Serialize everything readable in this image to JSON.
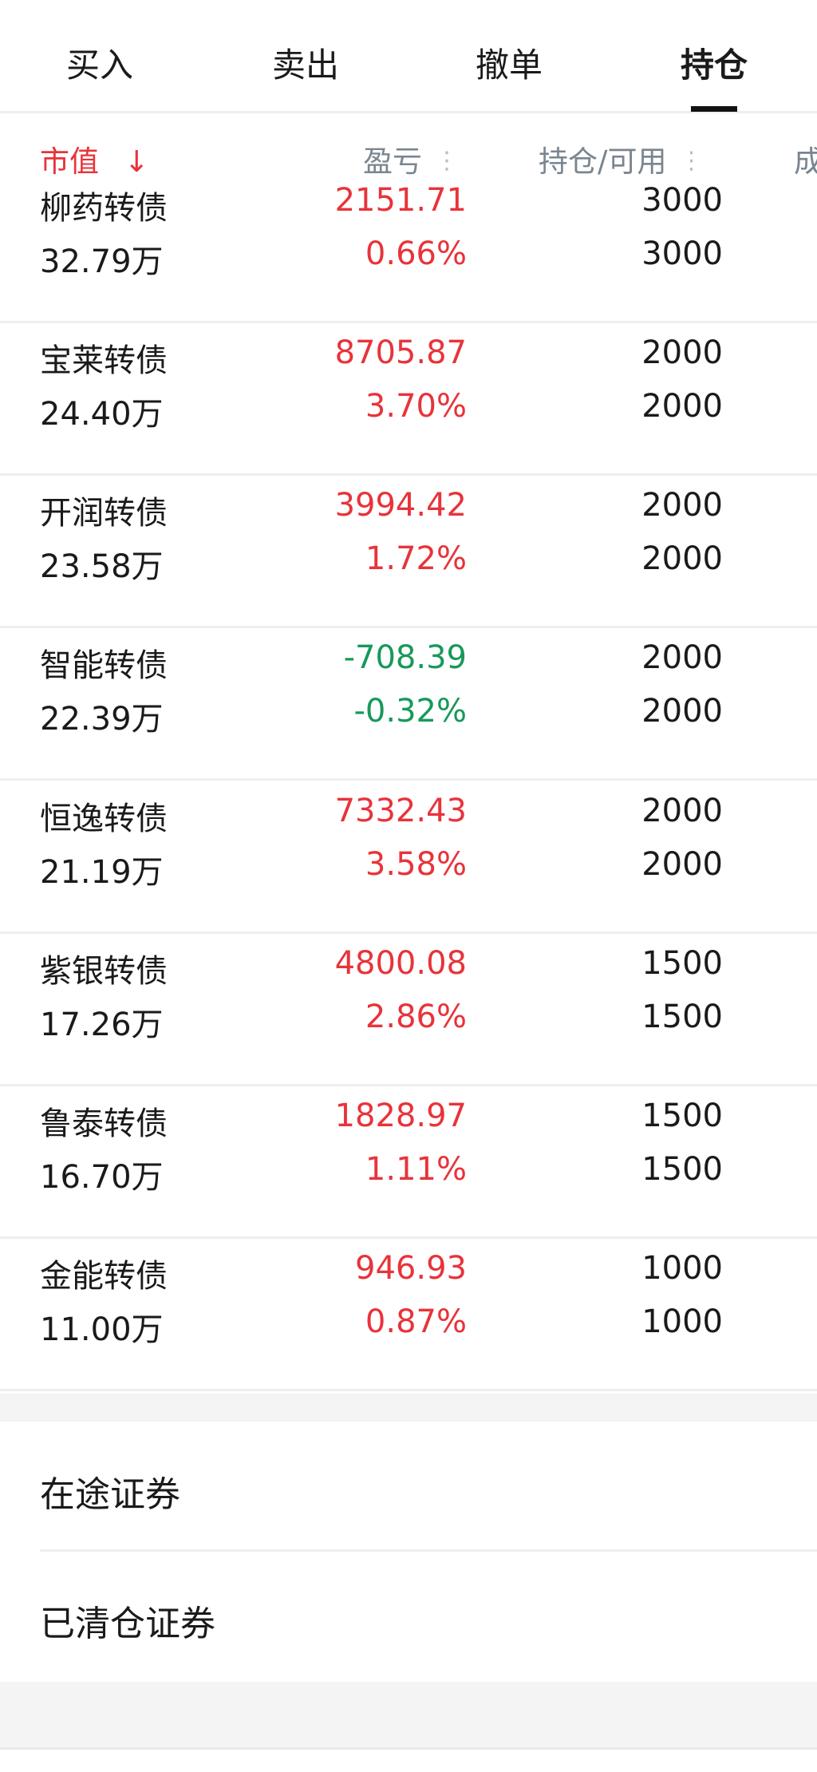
{
  "tabs": [
    {
      "label": "买入",
      "active": false
    },
    {
      "label": "卖出",
      "active": false
    },
    {
      "label": "撤单",
      "active": false
    },
    {
      "label": "持仓",
      "active": true
    }
  ],
  "table_header": {
    "market_value": "市值",
    "sort_icon": "arrow-down-icon",
    "pnl": "盈亏",
    "position": "持仓/可用",
    "cost_partial": "成",
    "menu_icon": "vertical-dots-icon"
  },
  "colors": {
    "up": "#e8333a",
    "down": "#16995a",
    "header": "#7a8590"
  },
  "rows": [
    {
      "name": "柳药转债",
      "market_value": "32.79万",
      "pnl": "2151.71",
      "pnl_pct": "0.66%",
      "hold": "3000",
      "available": "3000",
      "trend": "up"
    },
    {
      "name": "宝莱转债",
      "market_value": "24.40万",
      "pnl": "8705.87",
      "pnl_pct": "3.70%",
      "hold": "2000",
      "available": "2000",
      "trend": "up"
    },
    {
      "name": "开润转债",
      "market_value": "23.58万",
      "pnl": "3994.42",
      "pnl_pct": "1.72%",
      "hold": "2000",
      "available": "2000",
      "trend": "up"
    },
    {
      "name": "智能转债",
      "market_value": "22.39万",
      "pnl": "-708.39",
      "pnl_pct": "-0.32%",
      "hold": "2000",
      "available": "2000",
      "trend": "down"
    },
    {
      "name": "恒逸转债",
      "market_value": "21.19万",
      "pnl": "7332.43",
      "pnl_pct": "3.58%",
      "hold": "2000",
      "available": "2000",
      "trend": "up"
    },
    {
      "name": "紫银转债",
      "market_value": "17.26万",
      "pnl": "4800.08",
      "pnl_pct": "2.86%",
      "hold": "1500",
      "available": "1500",
      "trend": "up"
    },
    {
      "name": "鲁泰转债",
      "market_value": "16.70万",
      "pnl": "1828.97",
      "pnl_pct": "1.11%",
      "hold": "1500",
      "available": "1500",
      "trend": "up"
    },
    {
      "name": "金能转债",
      "market_value": "11.00万",
      "pnl": "946.93",
      "pnl_pct": "0.87%",
      "hold": "1000",
      "available": "1000",
      "trend": "up"
    }
  ],
  "links": {
    "in_transit": "在途证券",
    "cleared": "已清仓证券"
  }
}
